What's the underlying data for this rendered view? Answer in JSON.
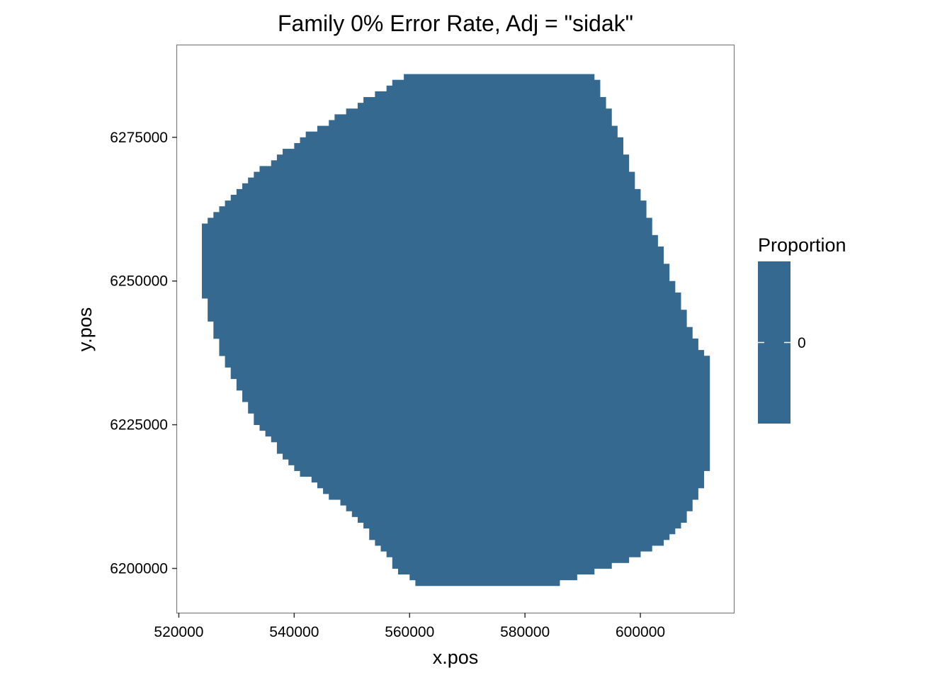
{
  "chart_data": {
    "type": "heatmap",
    "title": "Family 0% Error Rate, Adj = \"sidak\"",
    "xlabel": "x.pos",
    "ylabel": "y.pos",
    "xlim": [
      519700,
      616200
    ],
    "ylim": [
      6192300,
      6291000
    ],
    "x_ticks": [
      520000,
      540000,
      560000,
      580000,
      600000
    ],
    "x_tick_labels": [
      "520000",
      "540000",
      "560000",
      "580000",
      "600000"
    ],
    "y_ticks": [
      6200000,
      6225000,
      6250000,
      6275000
    ],
    "y_tick_labels": [
      "6200000",
      "6225000",
      "6250000",
      "6275000"
    ],
    "grid": false,
    "fill_color": "#35698f",
    "legend": {
      "title": "Proportion",
      "placement": "right",
      "entries": [
        {
          "label": "0",
          "value": 0,
          "color": "#35698f"
        }
      ]
    },
    "region_value": 0,
    "region_boundary": [
      [
        563000,
        6286500
      ],
      [
        591800,
        6286500
      ],
      [
        593000,
        6283500
      ],
      [
        594200,
        6280500
      ],
      [
        595500,
        6277500
      ],
      [
        596700,
        6274000
      ],
      [
        598000,
        6270500
      ],
      [
        599500,
        6266500
      ],
      [
        601000,
        6262500
      ],
      [
        602500,
        6258500
      ],
      [
        604000,
        6254500
      ],
      [
        605500,
        6250500
      ],
      [
        607000,
        6246500
      ],
      [
        608500,
        6242500
      ],
      [
        610000,
        6238500
      ],
      [
        611000,
        6237500
      ],
      [
        612200,
        6236000
      ],
      [
        612200,
        6218800
      ],
      [
        611200,
        6216000
      ],
      [
        610000,
        6212500
      ],
      [
        608500,
        6209500
      ],
      [
        607000,
        6207000
      ],
      [
        605000,
        6205000
      ],
      [
        602500,
        6203500
      ],
      [
        600000,
        6202500
      ],
      [
        597000,
        6201000
      ],
      [
        594000,
        6200000
      ],
      [
        591000,
        6199000
      ],
      [
        588000,
        6198200
      ],
      [
        585000,
        6197200
      ],
      [
        583000,
        6196600
      ],
      [
        563000,
        6196600
      ],
      [
        561000,
        6197500
      ],
      [
        559000,
        6199000
      ],
      [
        557000,
        6201000
      ],
      [
        555000,
        6203500
      ],
      [
        553000,
        6206000
      ],
      [
        551000,
        6208500
      ],
      [
        549000,
        6210500
      ],
      [
        546500,
        6212500
      ],
      [
        544000,
        6214500
      ],
      [
        541500,
        6216500
      ],
      [
        539500,
        6218500
      ],
      [
        537500,
        6220500
      ],
      [
        535500,
        6223000
      ],
      [
        533500,
        6225500
      ],
      [
        532000,
        6228500
      ],
      [
        530500,
        6231500
      ],
      [
        529000,
        6234500
      ],
      [
        527500,
        6237500
      ],
      [
        526500,
        6240500
      ],
      [
        525500,
        6243500
      ],
      [
        524500,
        6247500
      ],
      [
        524500,
        6259800
      ],
      [
        525200,
        6260800
      ],
      [
        526500,
        6262000
      ],
      [
        528000,
        6263500
      ],
      [
        529500,
        6265000
      ],
      [
        531000,
        6266500
      ],
      [
        532800,
        6268000
      ],
      [
        534500,
        6269500
      ],
      [
        536500,
        6271000
      ],
      [
        538500,
        6272500
      ],
      [
        540500,
        6274000
      ],
      [
        542500,
        6275500
      ],
      [
        545000,
        6277000
      ],
      [
        547500,
        6278500
      ],
      [
        550000,
        6280000
      ],
      [
        552500,
        6281500
      ],
      [
        555000,
        6283000
      ],
      [
        557500,
        6284500
      ],
      [
        560000,
        6285800
      ]
    ]
  }
}
